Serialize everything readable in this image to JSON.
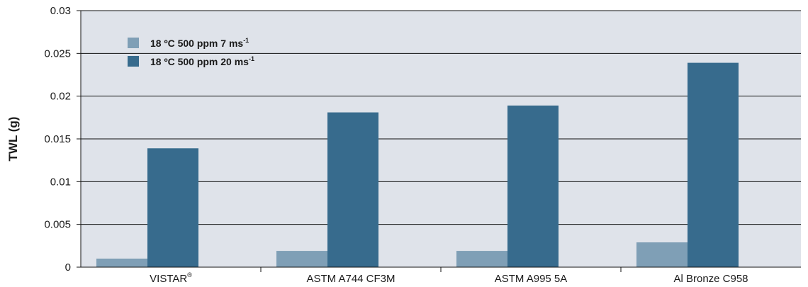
{
  "chart_data": {
    "type": "bar",
    "title": "",
    "xlabel": "",
    "ylabel": "TWL (g)",
    "categories": [
      "VISTAR",
      "ASTM A744 CF3M",
      "ASTM A995 5A",
      "Al Bronze C958"
    ],
    "category_superscripts": [
      "®",
      "",
      "",
      ""
    ],
    "series": [
      {
        "name": "18 ºC 500 ppm 7 ms",
        "name_superscript": "-1",
        "color": "#7f9fb6",
        "values": [
          0.001,
          0.0019,
          0.0019,
          0.0029
        ]
      },
      {
        "name": "18 ºC 500 ppm 20 ms",
        "name_superscript": "-1",
        "color": "#376b8d",
        "values": [
          0.0139,
          0.0181,
          0.0189,
          0.0239
        ]
      }
    ],
    "ylim": [
      0,
      0.03
    ],
    "yticks": [
      "0",
      "0.005",
      "0.01",
      "0.015",
      "0.02",
      "0.025",
      "0.03"
    ],
    "ytick_values": [
      0,
      0.005,
      0.01,
      0.015,
      0.02,
      0.025,
      0.03
    ],
    "grid": true,
    "plot_background": "#dfe3ea",
    "legend_position": "top-left"
  }
}
